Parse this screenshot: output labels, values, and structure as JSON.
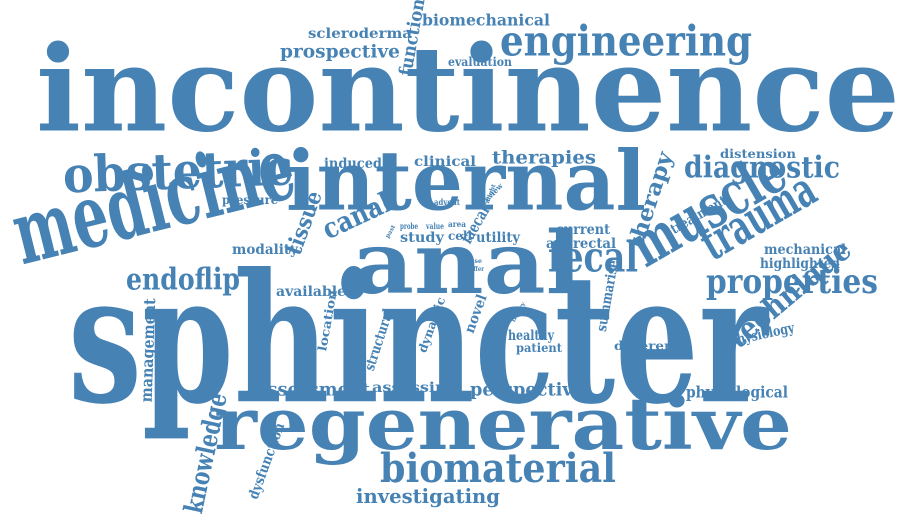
{
  "style": {
    "word_color": "#4682b4",
    "background": "#ffffff"
  },
  "words": [
    {
      "text": "incontinence",
      "weight": 10,
      "rotated": false
    },
    {
      "text": "sphincter",
      "weight": 10,
      "rotated": false
    },
    {
      "text": "regenerative",
      "weight": 7,
      "rotated": false
    },
    {
      "text": "anal",
      "weight": 7,
      "rotated": false
    },
    {
      "text": "internal",
      "weight": 7,
      "rotated": false
    },
    {
      "text": "medicine",
      "weight": 5,
      "rotated": false
    },
    {
      "text": "obstetric",
      "weight": 4,
      "rotated": false
    },
    {
      "text": "engineering",
      "weight": 3,
      "rotated": false
    },
    {
      "text": "muscle",
      "weight": 4,
      "rotated": true
    },
    {
      "text": "trauma",
      "weight": 3,
      "rotated": true
    },
    {
      "text": "fecal",
      "weight": 3,
      "rotated": false
    },
    {
      "text": "biomaterial",
      "weight": 3,
      "rotated": false
    },
    {
      "text": "diagnostic",
      "weight": 2,
      "rotated": false
    },
    {
      "text": "properties",
      "weight": 2,
      "rotated": false
    },
    {
      "text": "technique",
      "weight": 2,
      "rotated": true
    },
    {
      "text": "endoflip",
      "weight": 2,
      "rotated": false
    },
    {
      "text": "canal",
      "weight": 2,
      "rotated": true
    },
    {
      "text": "tissue",
      "weight": 2,
      "rotated": true
    },
    {
      "text": "therapy",
      "weight": 2,
      "rotated": true
    },
    {
      "text": "knowledge",
      "weight": 2,
      "rotated": true
    },
    {
      "text": "therapies",
      "weight": 1,
      "rotated": false
    },
    {
      "text": "prospective",
      "weight": 1,
      "rotated": false
    },
    {
      "text": "investigating",
      "weight": 1,
      "rotated": false
    },
    {
      "text": "assessment",
      "weight": 1,
      "rotated": false
    },
    {
      "text": "perspective",
      "weight": 1,
      "rotated": false
    },
    {
      "text": "biomechanical",
      "weight": 1,
      "rotated": false
    },
    {
      "text": "function",
      "weight": 1,
      "rotated": true
    },
    {
      "text": "scleroderma",
      "weight": 0,
      "rotated": false
    },
    {
      "text": "evaluation",
      "weight": 0,
      "rotated": false
    },
    {
      "text": "induced",
      "weight": 0,
      "rotated": false
    },
    {
      "text": "clinical",
      "weight": 0,
      "rotated": false
    },
    {
      "text": "distension",
      "weight": 0,
      "rotated": false
    },
    {
      "text": "pressure",
      "weight": 0,
      "rotated": false
    },
    {
      "text": "modality",
      "weight": 0,
      "rotated": false
    },
    {
      "text": "available",
      "weight": 0,
      "rotated": false
    },
    {
      "text": "study",
      "weight": 0,
      "rotated": false
    },
    {
      "text": "cell",
      "weight": 0,
      "rotated": false
    },
    {
      "text": "utility",
      "weight": 0,
      "rotated": false
    },
    {
      "text": "current",
      "weight": 0,
      "rotated": false
    },
    {
      "text": "anorectal",
      "weight": 0,
      "rotated": false
    },
    {
      "text": "advent",
      "weight": 0,
      "rotated": false
    },
    {
      "text": "review",
      "weight": 0,
      "rotated": true
    },
    {
      "text": "faecal",
      "weight": 0,
      "rotated": true
    },
    {
      "text": "mechanical",
      "weight": 0,
      "rotated": false
    },
    {
      "text": "highlighted",
      "weight": 0,
      "rotated": false
    },
    {
      "text": "treatment",
      "weight": 0,
      "rotated": true
    },
    {
      "text": "physiology",
      "weight": 0,
      "rotated": true
    },
    {
      "text": "healthy",
      "weight": 0,
      "rotated": false
    },
    {
      "text": "patient",
      "weight": 0,
      "rotated": false
    },
    {
      "text": "different",
      "weight": 0,
      "rotated": false
    },
    {
      "text": "physiological",
      "weight": 0,
      "rotated": false
    },
    {
      "text": "assessing",
      "weight": 0,
      "rotated": false
    },
    {
      "text": "management",
      "weight": 0,
      "rotated": true
    },
    {
      "text": "location",
      "weight": 0,
      "rotated": true
    },
    {
      "text": "structural",
      "weight": 0,
      "rotated": true
    },
    {
      "text": "dynamic",
      "weight": 0,
      "rotated": true
    },
    {
      "text": "novel",
      "weight": 0,
      "rotated": true
    },
    {
      "text": "summarise",
      "weight": 0,
      "rotated": true
    },
    {
      "text": "dysfunction",
      "weight": 0,
      "rotated": true
    },
    {
      "text": "probe",
      "weight": 0,
      "rotated": false
    },
    {
      "text": "value",
      "weight": 0,
      "rotated": false
    },
    {
      "text": "area",
      "weight": 0,
      "rotated": false
    },
    {
      "text": "offer",
      "weight": 0,
      "rotated": false
    },
    {
      "text": "injury",
      "weight": 0,
      "rotated": true
    },
    {
      "text": "might",
      "weight": 0,
      "rotated": true
    },
    {
      "text": "past",
      "weight": 0,
      "rotated": true
    },
    {
      "text": "use",
      "weight": 0,
      "rotated": false
    }
  ]
}
